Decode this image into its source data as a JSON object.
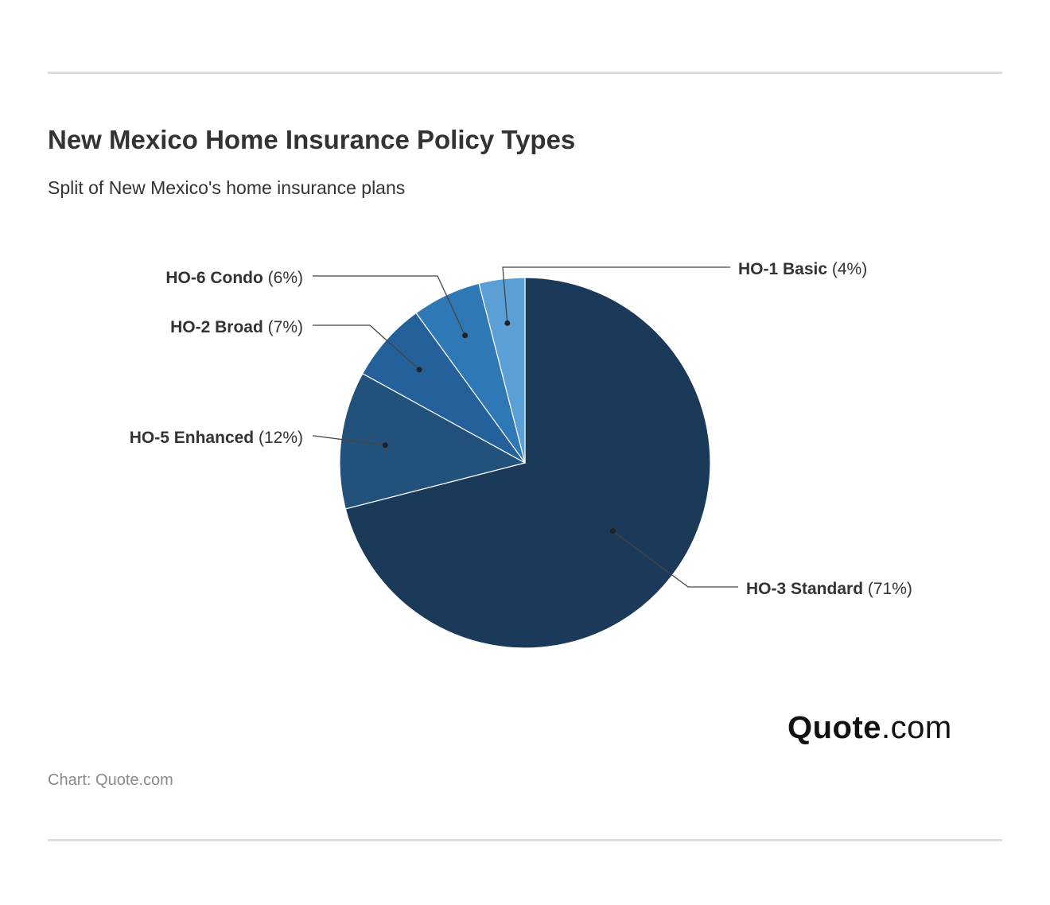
{
  "header": {
    "title": "New Mexico Home Insurance Policy Types",
    "subtitle": "Split of New Mexico's home insurance plans"
  },
  "footer": {
    "logo_main": "Quote",
    "logo_suffix": ".com",
    "source": "Chart: Quote.com"
  },
  "chart_data": {
    "type": "pie",
    "title": "New Mexico Home Insurance Policy Types",
    "subtitle": "Split of New Mexico's home insurance plans",
    "start_angle_deg": 0,
    "direction": "clockwise",
    "slices": [
      {
        "label": "HO-3 Standard",
        "value": 71,
        "value_label": "(71%)",
        "color": "#1b3a5a"
      },
      {
        "label": "HO-5 Enhanced",
        "value": 12,
        "value_label": "(12%)",
        "color": "#22527c"
      },
      {
        "label": "HO-2 Broad",
        "value": 7,
        "value_label": "(7%)",
        "color": "#24609a"
      },
      {
        "label": "HO-6 Condo",
        "value": 6,
        "value_label": "(6%)",
        "color": "#2f78b6"
      },
      {
        "label": "HO-1 Basic",
        "value": 4,
        "value_label": "(4%)",
        "color": "#5a9fd5"
      }
    ],
    "legend": "none (direct labels with leader lines)"
  }
}
